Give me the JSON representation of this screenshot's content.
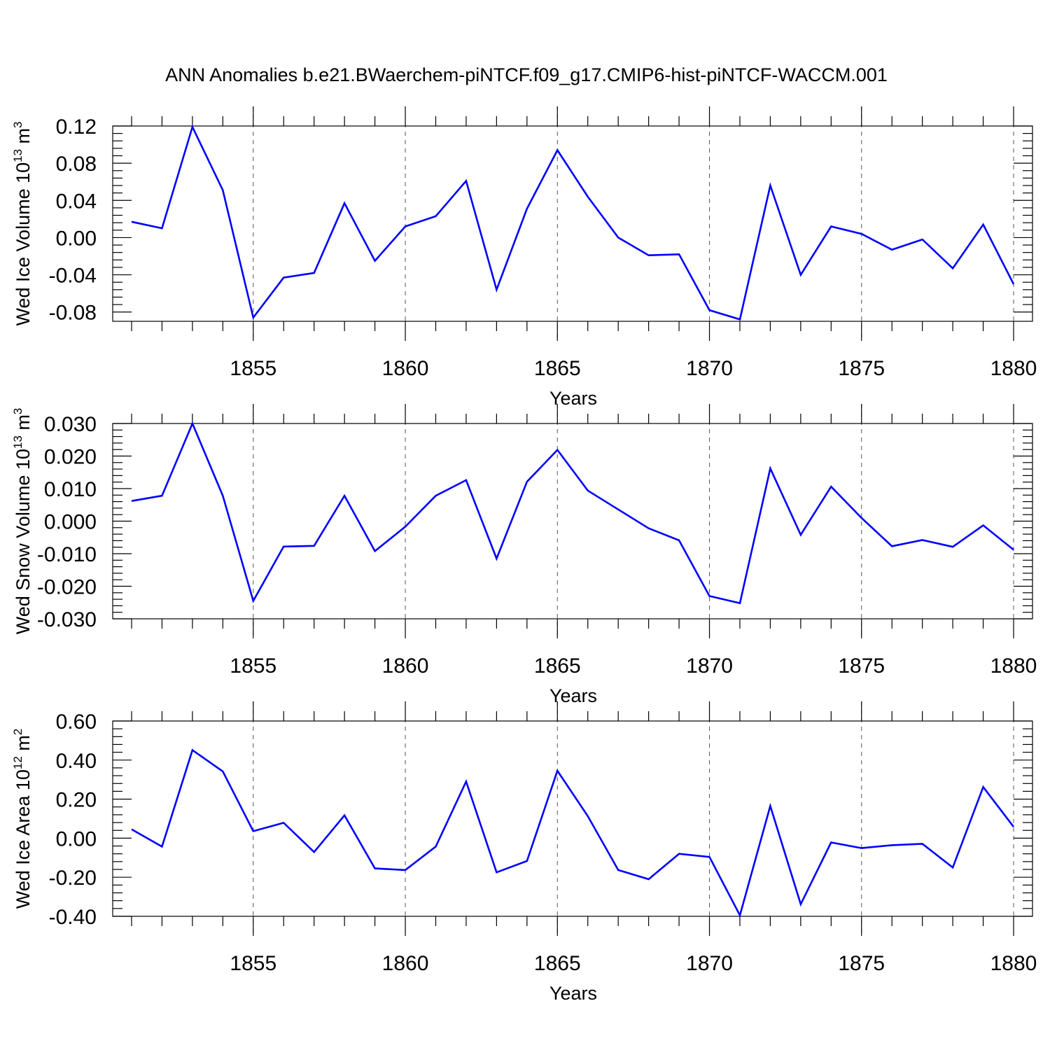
{
  "figure": {
    "title": "ANN Anomalies b.e21.BWaerchem-piNTCF.f09_g17.CMIP6-hist-piNTCF-WACCM.001"
  },
  "colors": {
    "series": "#0000ff",
    "axis": "#000000",
    "grid": "#555555"
  },
  "chart_data": [
    {
      "type": "line",
      "ylabel": "Wed Ice Volume 10",
      "ylabel_sup": "13",
      "ylabel_unit": " m",
      "ylabel_unit_sup": "3",
      "xlabel": "Years",
      "xlim": [
        1851,
        1880
      ],
      "ylim": [
        -0.09,
        0.12
      ],
      "yticks": [
        0.12,
        0.08,
        0.04,
        0.0,
        -0.04,
        -0.08
      ],
      "ytick_labels": [
        "0.12",
        "0.08",
        "0.04",
        "0.00",
        "-0.04",
        "-0.08"
      ],
      "xticks": [
        1855,
        1860,
        1865,
        1870,
        1875,
        1880
      ],
      "xtick_labels": [
        "1855",
        "1860",
        "1865",
        "1870",
        "1875",
        "1880"
      ],
      "x": [
        1851,
        1852,
        1853,
        1854,
        1855,
        1856,
        1857,
        1858,
        1859,
        1860,
        1861,
        1862,
        1863,
        1864,
        1865,
        1866,
        1867,
        1868,
        1869,
        1870,
        1871,
        1872,
        1873,
        1874,
        1875,
        1876,
        1877,
        1878,
        1879,
        1880
      ],
      "values": [
        0.017,
        0.01,
        0.119,
        0.051,
        -0.086,
        -0.043,
        -0.038,
        0.037,
        -0.025,
        0.012,
        0.023,
        0.061,
        -0.056,
        0.031,
        0.094,
        0.044,
        0.0,
        -0.019,
        -0.018,
        -0.078,
        -0.088,
        0.056,
        -0.04,
        0.012,
        0.004,
        -0.013,
        -0.002,
        -0.033,
        0.014,
        -0.05
      ]
    },
    {
      "type": "line",
      "ylabel": "Wed Snow Volume 10",
      "ylabel_sup": "13",
      "ylabel_unit": " m",
      "ylabel_unit_sup": "3",
      "xlabel": "Years",
      "xlim": [
        1851,
        1880
      ],
      "ylim": [
        -0.03,
        0.03
      ],
      "yticks": [
        0.03,
        0.02,
        0.01,
        0.0,
        -0.01,
        -0.02,
        -0.03
      ],
      "ytick_labels": [
        "0.030",
        "0.020",
        "0.010",
        "0.000",
        "-0.010",
        "-0.020",
        "-0.030"
      ],
      "xticks": [
        1855,
        1860,
        1865,
        1870,
        1875,
        1880
      ],
      "xtick_labels": [
        "1855",
        "1860",
        "1865",
        "1870",
        "1875",
        "1880"
      ],
      "x": [
        1851,
        1852,
        1853,
        1854,
        1855,
        1856,
        1857,
        1858,
        1859,
        1860,
        1861,
        1862,
        1863,
        1864,
        1865,
        1866,
        1867,
        1868,
        1869,
        1870,
        1871,
        1872,
        1873,
        1874,
        1875,
        1876,
        1877,
        1878,
        1879,
        1880
      ],
      "values": [
        0.0062,
        0.0078,
        0.03,
        0.0078,
        -0.0245,
        -0.0078,
        -0.0076,
        0.0078,
        -0.0092,
        -0.0017,
        0.0078,
        0.0126,
        -0.0115,
        0.0121,
        0.0219,
        0.0094,
        0.0036,
        -0.0022,
        -0.0059,
        -0.023,
        -0.0252,
        0.0162,
        -0.0042,
        0.0106,
        0.001,
        -0.0077,
        -0.0058,
        -0.0079,
        -0.0013,
        -0.0088
      ]
    },
    {
      "type": "line",
      "ylabel": "Wed Ice Area 10",
      "ylabel_sup": "12",
      "ylabel_unit": " m",
      "ylabel_unit_sup": "2",
      "xlabel": "Years",
      "xlim": [
        1851,
        1880
      ],
      "ylim": [
        -0.4,
        0.6
      ],
      "yticks": [
        0.6,
        0.4,
        0.2,
        0.0,
        -0.2,
        -0.4
      ],
      "ytick_labels": [
        "0.60",
        "0.40",
        "0.20",
        "0.00",
        "-0.20",
        "-0.40"
      ],
      "xticks": [
        1855,
        1860,
        1865,
        1870,
        1875,
        1880
      ],
      "xtick_labels": [
        "1855",
        "1860",
        "1865",
        "1870",
        "1875",
        "1880"
      ],
      "x": [
        1851,
        1852,
        1853,
        1854,
        1855,
        1856,
        1857,
        1858,
        1859,
        1860,
        1861,
        1862,
        1863,
        1864,
        1865,
        1866,
        1867,
        1868,
        1869,
        1870,
        1871,
        1872,
        1873,
        1874,
        1875,
        1876,
        1877,
        1878,
        1879,
        1880
      ],
      "values": [
        0.045,
        -0.043,
        0.451,
        0.342,
        0.036,
        0.079,
        -0.071,
        0.117,
        -0.155,
        -0.163,
        -0.043,
        0.29,
        -0.175,
        -0.117,
        0.345,
        0.113,
        -0.163,
        -0.21,
        -0.08,
        -0.096,
        -0.395,
        0.165,
        -0.338,
        -0.022,
        -0.051,
        -0.036,
        -0.029,
        -0.15,
        0.262,
        0.058
      ]
    }
  ]
}
